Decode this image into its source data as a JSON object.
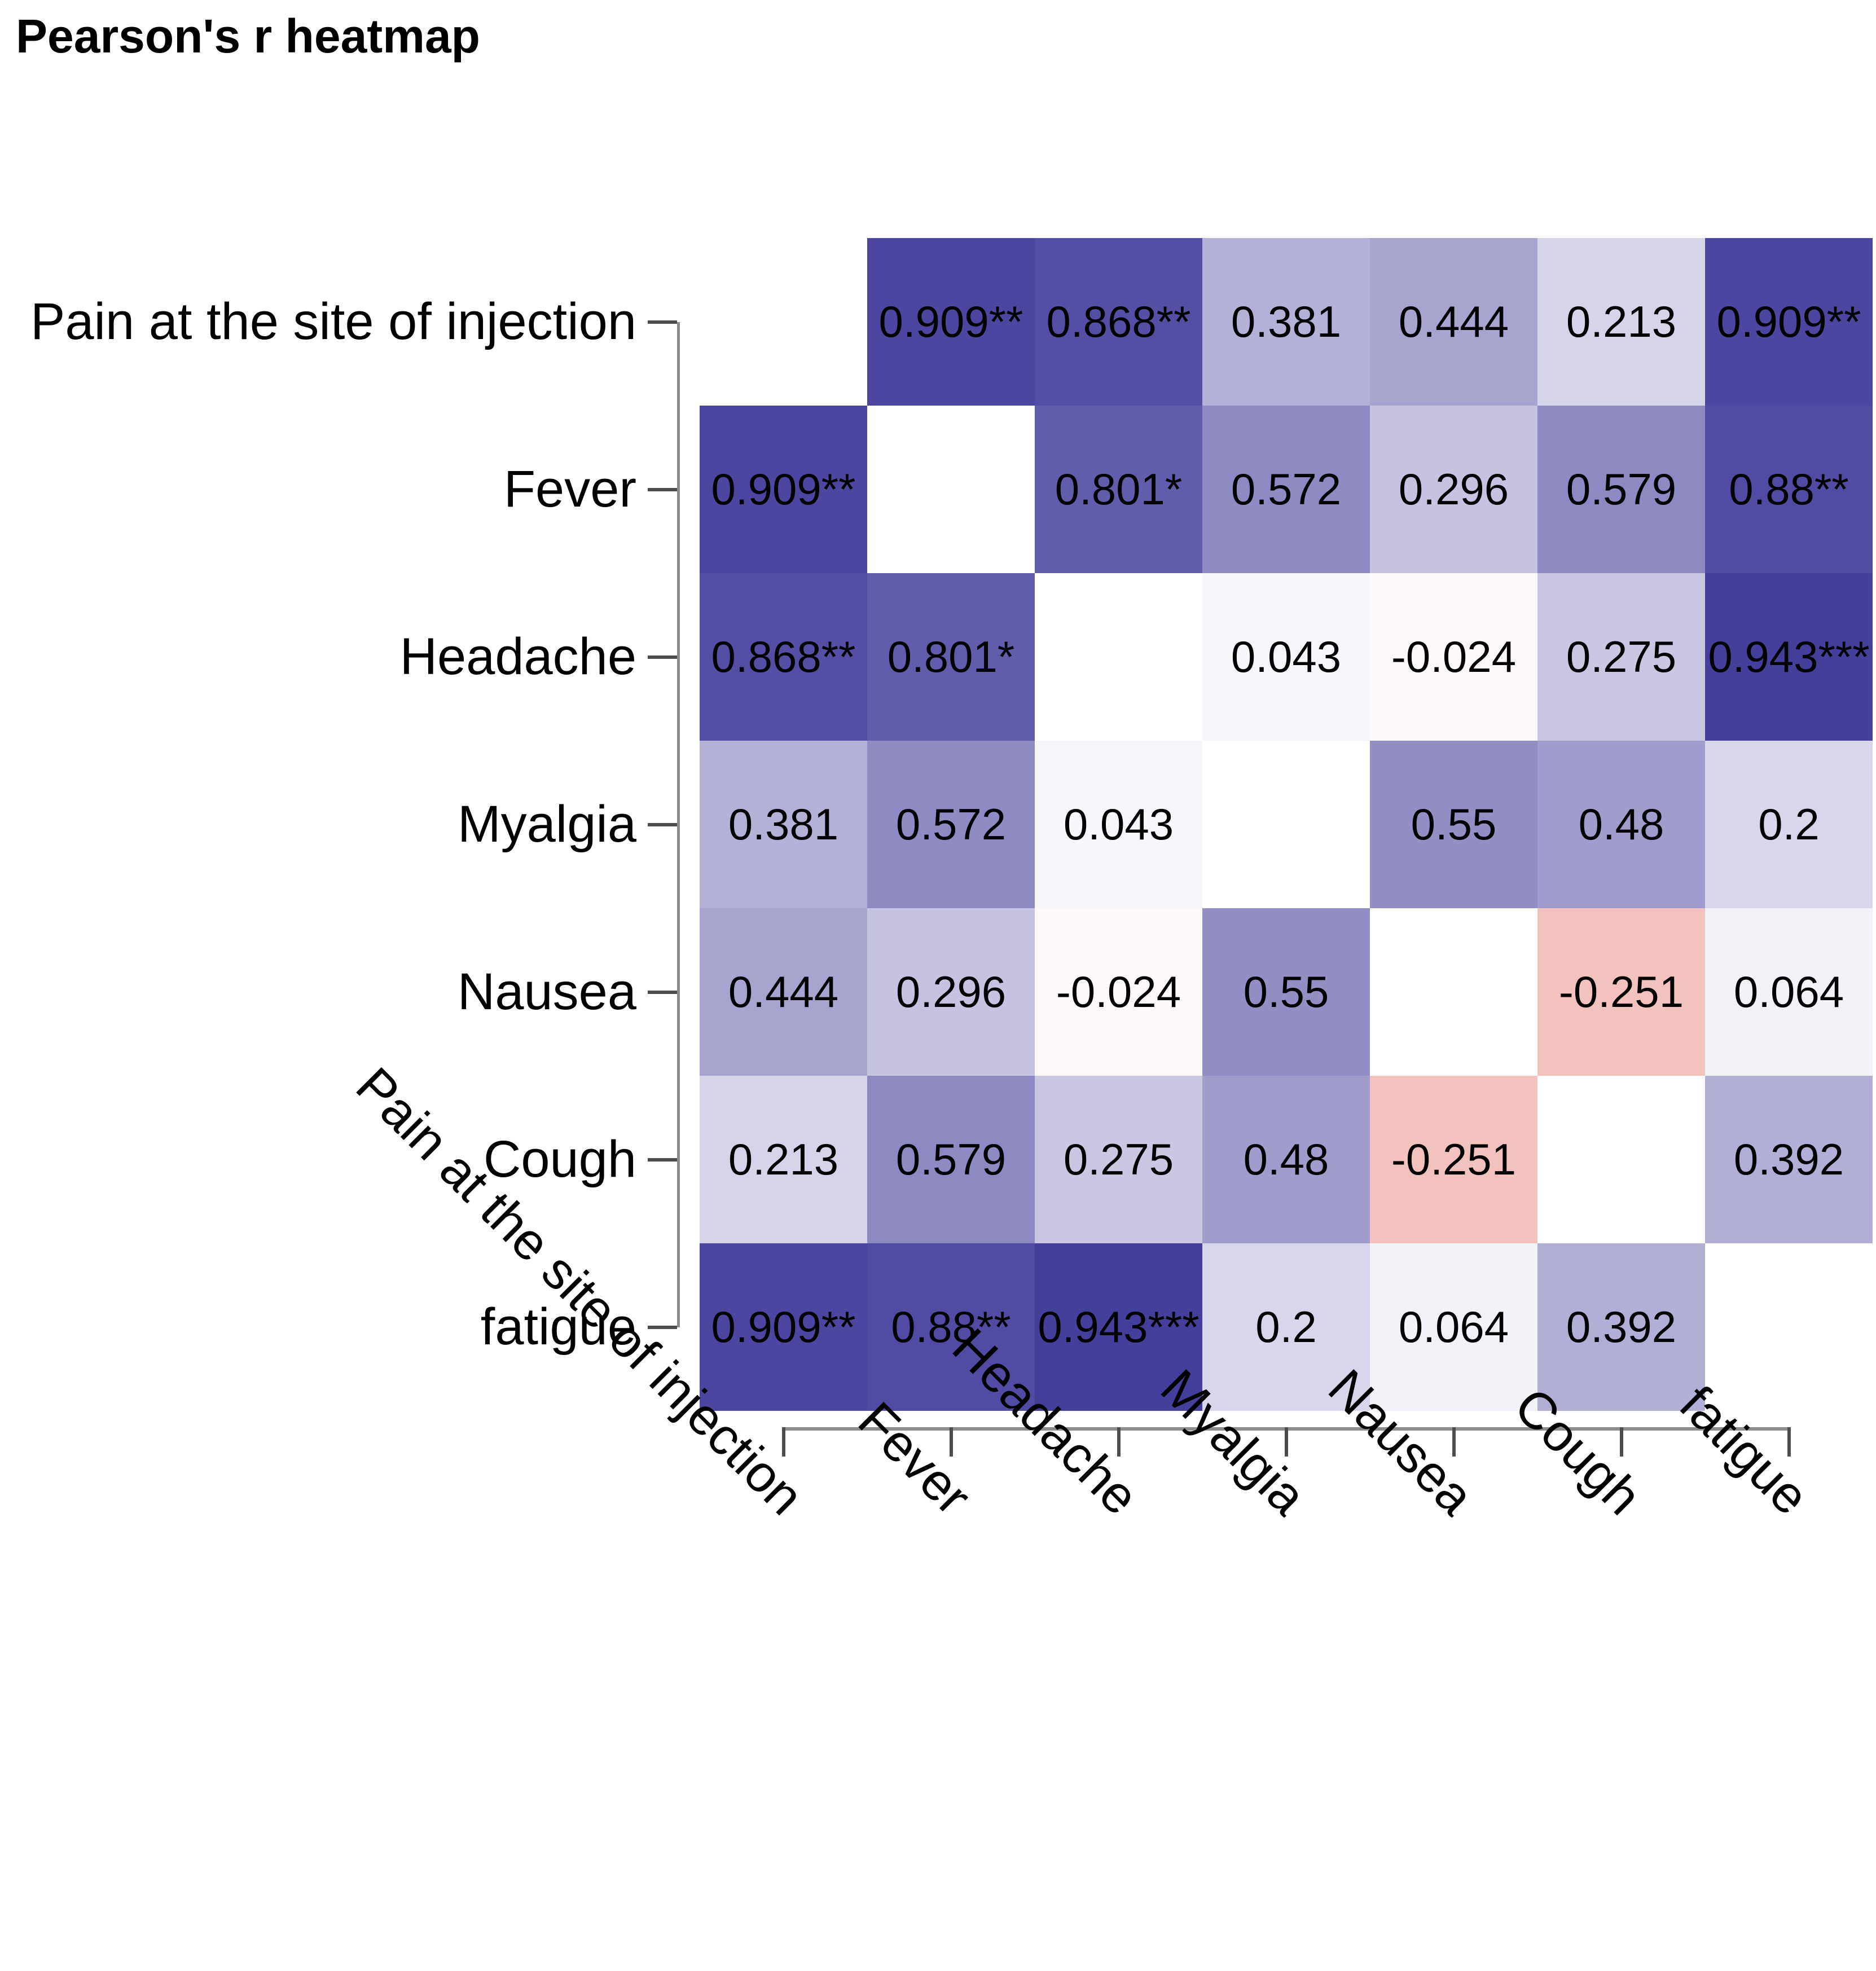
{
  "title": "Pearson's r heatmap",
  "chart_data": {
    "type": "heatmap",
    "title": "Pearson's r heatmap",
    "variables": [
      "Pain at the site of injection",
      "Fever",
      "Headache",
      "Myalgia",
      "Nausea",
      "Cough",
      "fatigue"
    ],
    "matrix": [
      [
        null,
        0.909,
        0.868,
        0.381,
        0.444,
        0.213,
        0.909
      ],
      [
        0.909,
        null,
        0.801,
        0.572,
        0.296,
        0.579,
        0.88
      ],
      [
        0.868,
        0.801,
        null,
        0.043,
        -0.024,
        0.275,
        0.943
      ],
      [
        0.381,
        0.572,
        0.043,
        null,
        0.55,
        0.48,
        0.2
      ],
      [
        0.444,
        0.296,
        -0.024,
        0.55,
        null,
        -0.251,
        0.064
      ],
      [
        0.213,
        0.579,
        0.275,
        0.48,
        -0.251,
        null,
        0.392
      ],
      [
        0.909,
        0.88,
        0.943,
        0.2,
        0.064,
        0.392,
        null
      ]
    ],
    "value_labels": [
      [
        "",
        "0.909**",
        "0.868**",
        "0.381",
        "0.444",
        "0.213",
        "0.909**"
      ],
      [
        "0.909**",
        "",
        "0.801*",
        "0.572",
        "0.296",
        "0.579",
        "0.88**"
      ],
      [
        "0.868**",
        "0.801*",
        "",
        "0.043",
        "-0.024",
        "0.275",
        "0.943***"
      ],
      [
        "0.381",
        "0.572",
        "0.043",
        "",
        "0.55",
        "0.48",
        "0.2"
      ],
      [
        "0.444",
        "0.296",
        "-0.024",
        "0.55",
        "",
        "-0.251",
        "0.064"
      ],
      [
        "0.213",
        "0.579",
        "0.275",
        "0.48",
        "-0.251",
        "",
        "0.392"
      ],
      [
        "0.909**",
        "0.88**",
        "0.943***",
        "0.2",
        "0.064",
        "0.392",
        ""
      ]
    ],
    "value_range": [
      -1,
      1
    ],
    "diagonal": "blank",
    "grid": false,
    "legend": "none",
    "colormap": {
      "zero_color": "#ffffff",
      "positive_end": "#3a3396",
      "negative_end": "#cb0c00"
    },
    "axis_color": "#8c8c8c",
    "tick_color": "#4d4d4d",
    "text_color": "#000000"
  }
}
